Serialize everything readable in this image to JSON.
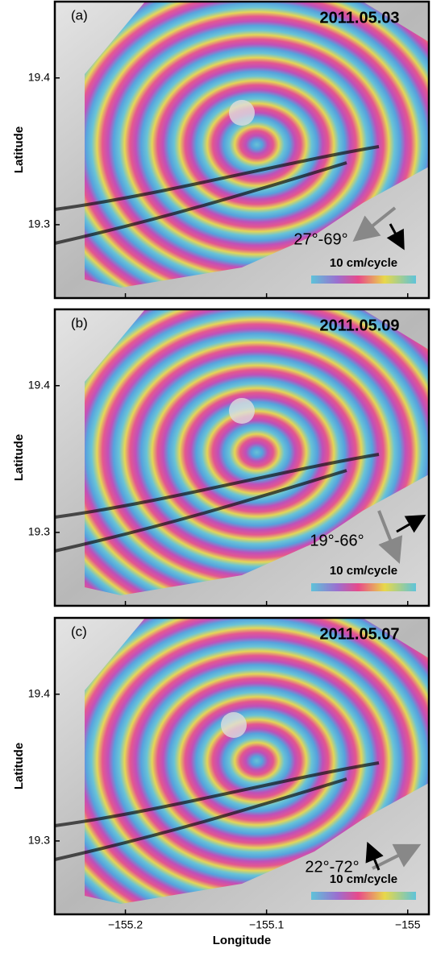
{
  "panels": [
    {
      "label": "(a)",
      "date": "2011.05.03",
      "angles": "27°-69°",
      "scale": "10 cm/cycle"
    },
    {
      "label": "(b)",
      "date": "2011.05.09",
      "angles": "19°-66°",
      "scale": "10 cm/cycle"
    },
    {
      "label": "(c)",
      "date": "2011.05.07",
      "angles": "22°-72°",
      "scale": "10 cm/cycle"
    }
  ],
  "y_axis": {
    "label": "Latitude",
    "lim": [
      19.25,
      19.452
    ],
    "ticks": [
      19.4,
      19.3
    ]
  },
  "x_axis": {
    "label": "Longitude",
    "lim": [
      -155.25,
      -154.985
    ],
    "ticks": [
      {
        "value": -155.2,
        "label": "−155.2"
      },
      {
        "value": -155.1,
        "label": "−155.1"
      },
      {
        "value": -155,
        "label": "−155"
      }
    ]
  }
}
